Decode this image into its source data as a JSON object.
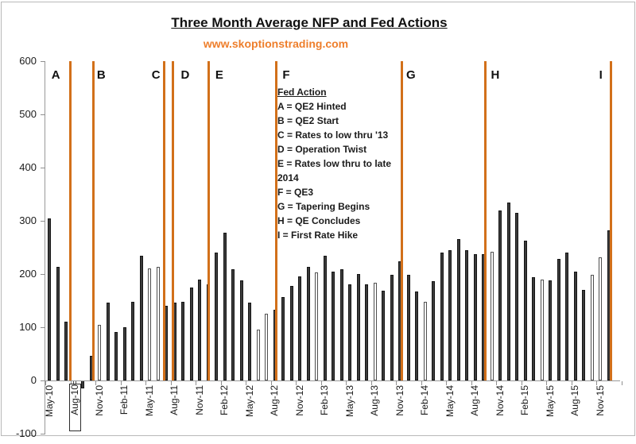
{
  "header": {
    "title": "Three Month Average NFP and Fed Actions",
    "watermark": "www.skoptionstrading.com"
  },
  "legend": {
    "header": "Fed Action",
    "items": [
      "A = QE2 Hinted",
      "B = QE2 Start",
      "C = Rates to low thru '13",
      "D = Operation Twist",
      "E = Rates low thru to late 2014",
      "F  = QE3",
      "G = Tapering Begins",
      "H = QE Concludes",
      "I = First Rate Hike"
    ]
  },
  "colors": {
    "orange_line": "#D2701A",
    "watermark": "#EE7E2B",
    "bar_dark": "#3b3b3b",
    "bar_light": "#ffffff",
    "axis": "#999999",
    "frame": "#b8b8b8"
  },
  "chart_data": {
    "type": "bar",
    "title": "Three Month Average NFP and Fed Actions",
    "ylim": [
      -100,
      600
    ],
    "y_tick_labels": [
      "600",
      "500",
      "400",
      "300",
      "200",
      "100",
      "0",
      "-100"
    ],
    "x_tick_every": 3,
    "boxed_x_label": "Aug-10",
    "months": [
      [
        "May-10",
        304,
        0
      ],
      [
        "Jun-10",
        213,
        0
      ],
      [
        "Jul-10",
        110,
        0
      ],
      [
        "Aug-10",
        -65,
        1
      ],
      [
        "Sep-10",
        -15,
        0
      ],
      [
        "Oct-10",
        46,
        0
      ],
      [
        "Nov-10",
        104,
        1
      ],
      [
        "Dec-10",
        147,
        0
      ],
      [
        "Jan-11",
        91,
        0
      ],
      [
        "Feb-11",
        100,
        0
      ],
      [
        "Mar-11",
        148,
        0
      ],
      [
        "Apr-11",
        234,
        0
      ],
      [
        "May-11",
        211,
        1
      ],
      [
        "Jun-11",
        213,
        1
      ],
      [
        "Jul-11",
        140,
        0
      ],
      [
        "Aug-11",
        147,
        0
      ],
      [
        "Sep-11",
        148,
        0
      ],
      [
        "Oct-11",
        174,
        0
      ],
      [
        "Nov-11",
        189,
        0
      ],
      [
        "Dec-11",
        181,
        0
      ],
      [
        "Jan-12",
        240,
        0
      ],
      [
        "Feb-12",
        277,
        0
      ],
      [
        "Mar-12",
        209,
        0
      ],
      [
        "Apr-12",
        188,
        0
      ],
      [
        "May-12",
        147,
        0
      ],
      [
        "Jun-12",
        96,
        1
      ],
      [
        "Jul-12",
        125,
        1
      ],
      [
        "Aug-12",
        133,
        0
      ],
      [
        "Sep-12",
        157,
        0
      ],
      [
        "Oct-12",
        178,
        0
      ],
      [
        "Nov-12",
        195,
        0
      ],
      [
        "Dec-12",
        213,
        0
      ],
      [
        "Jan-13",
        203,
        1
      ],
      [
        "Feb-13",
        235,
        0
      ],
      [
        "Mar-13",
        205,
        0
      ],
      [
        "Apr-13",
        209,
        0
      ],
      [
        "May-13",
        180,
        0
      ],
      [
        "Jun-13",
        200,
        0
      ],
      [
        "Jul-13",
        180,
        0
      ],
      [
        "Aug-13",
        184,
        1
      ],
      [
        "Sep-13",
        169,
        0
      ],
      [
        "Oct-13",
        198,
        0
      ],
      [
        "Nov-13",
        224,
        0
      ],
      [
        "Dec-13",
        199,
        0
      ],
      [
        "Jan-14",
        167,
        0
      ],
      [
        "Feb-14",
        148,
        1
      ],
      [
        "Mar-14",
        187,
        0
      ],
      [
        "Apr-14",
        240,
        0
      ],
      [
        "May-14",
        245,
        0
      ],
      [
        "Jun-14",
        265,
        0
      ],
      [
        "Jul-14",
        245,
        0
      ],
      [
        "Aug-14",
        237,
        0
      ],
      [
        "Sep-14",
        237,
        0
      ],
      [
        "Oct-14",
        242,
        1
      ],
      [
        "Nov-14",
        320,
        0
      ],
      [
        "Dec-14",
        335,
        0
      ],
      [
        "Jan-15",
        315,
        0
      ],
      [
        "Feb-15",
        263,
        0
      ],
      [
        "Mar-15",
        194,
        0
      ],
      [
        "Apr-15",
        189,
        1
      ],
      [
        "May-15",
        188,
        0
      ],
      [
        "Jun-15",
        228,
        0
      ],
      [
        "Jul-15",
        241,
        0
      ],
      [
        "Aug-15",
        205,
        0
      ],
      [
        "Sep-15",
        170,
        0
      ],
      [
        "Oct-15",
        199,
        1
      ],
      [
        "Nov-15",
        232,
        1
      ],
      [
        "Dec-15",
        282,
        0
      ]
    ],
    "fed_events": [
      {
        "letter": "A",
        "line": 2.5,
        "pos": 0.75
      },
      {
        "letter": "B",
        "line": 5.3,
        "pos": 6.2
      },
      {
        "letter": "C",
        "line": 13.7,
        "pos": 12.75
      },
      {
        "letter": "D",
        "line": 14.75,
        "pos": 16.25
      },
      {
        "letter": "E",
        "line": 19.1,
        "pos": 20.35
      },
      {
        "letter": "F",
        "line": 27.2,
        "pos": 28.35
      },
      {
        "letter": "G",
        "line": 42.2,
        "pos": 43.3
      },
      {
        "letter": "H",
        "line": 52.25,
        "pos": 53.4
      },
      {
        "letter": "I",
        "line": 67.25,
        "pos": 66.05
      }
    ]
  }
}
